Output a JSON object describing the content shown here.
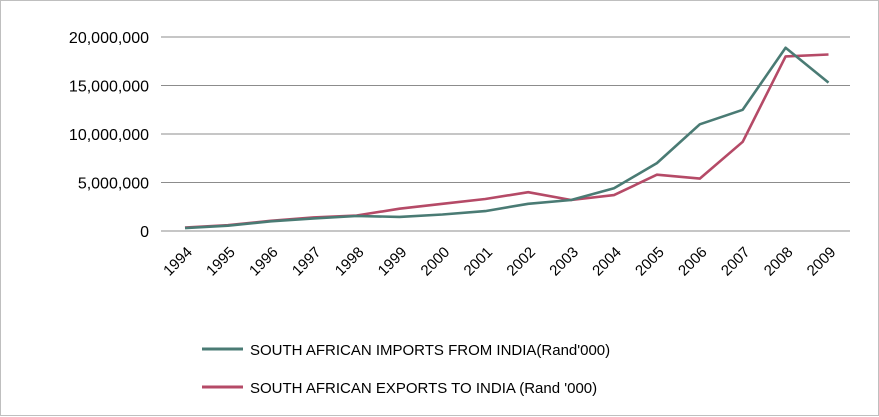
{
  "chart_data": {
    "type": "line",
    "title": "",
    "xlabel": "",
    "ylabel": "",
    "x": [
      "1994",
      "1995",
      "1996",
      "1997",
      "1998",
      "1999",
      "2000",
      "2001",
      "2002",
      "2003",
      "2004",
      "2005",
      "2006",
      "2007",
      "2008",
      "2009"
    ],
    "ylim": [
      0,
      20000000
    ],
    "yticks": [
      0,
      5000000,
      10000000,
      15000000,
      20000000
    ],
    "ytick_labels": [
      "0",
      "5,000,000",
      "10,000,000",
      "15,000,000",
      "20,000,000"
    ],
    "grid": true,
    "legend_position": "bottom",
    "series": [
      {
        "name": "SOUTH AFRICAN IMPORTS FROM INDIA(Rand'000)",
        "color": "#4a7b74",
        "values": [
          300000,
          550000,
          1000000,
          1300000,
          1550000,
          1450000,
          1700000,
          2050000,
          2800000,
          3200000,
          4400000,
          7000000,
          11000000,
          12500000,
          18900000,
          15300000
        ]
      },
      {
        "name": "SOUTH AFRICAN EXPORTS TO INDIA (Rand '000)",
        "color": "#b54a67",
        "values": [
          350000,
          600000,
          1050000,
          1400000,
          1600000,
          2300000,
          2800000,
          3300000,
          4000000,
          3200000,
          3700000,
          5800000,
          5400000,
          9200000,
          18000000,
          18200000
        ]
      }
    ]
  }
}
